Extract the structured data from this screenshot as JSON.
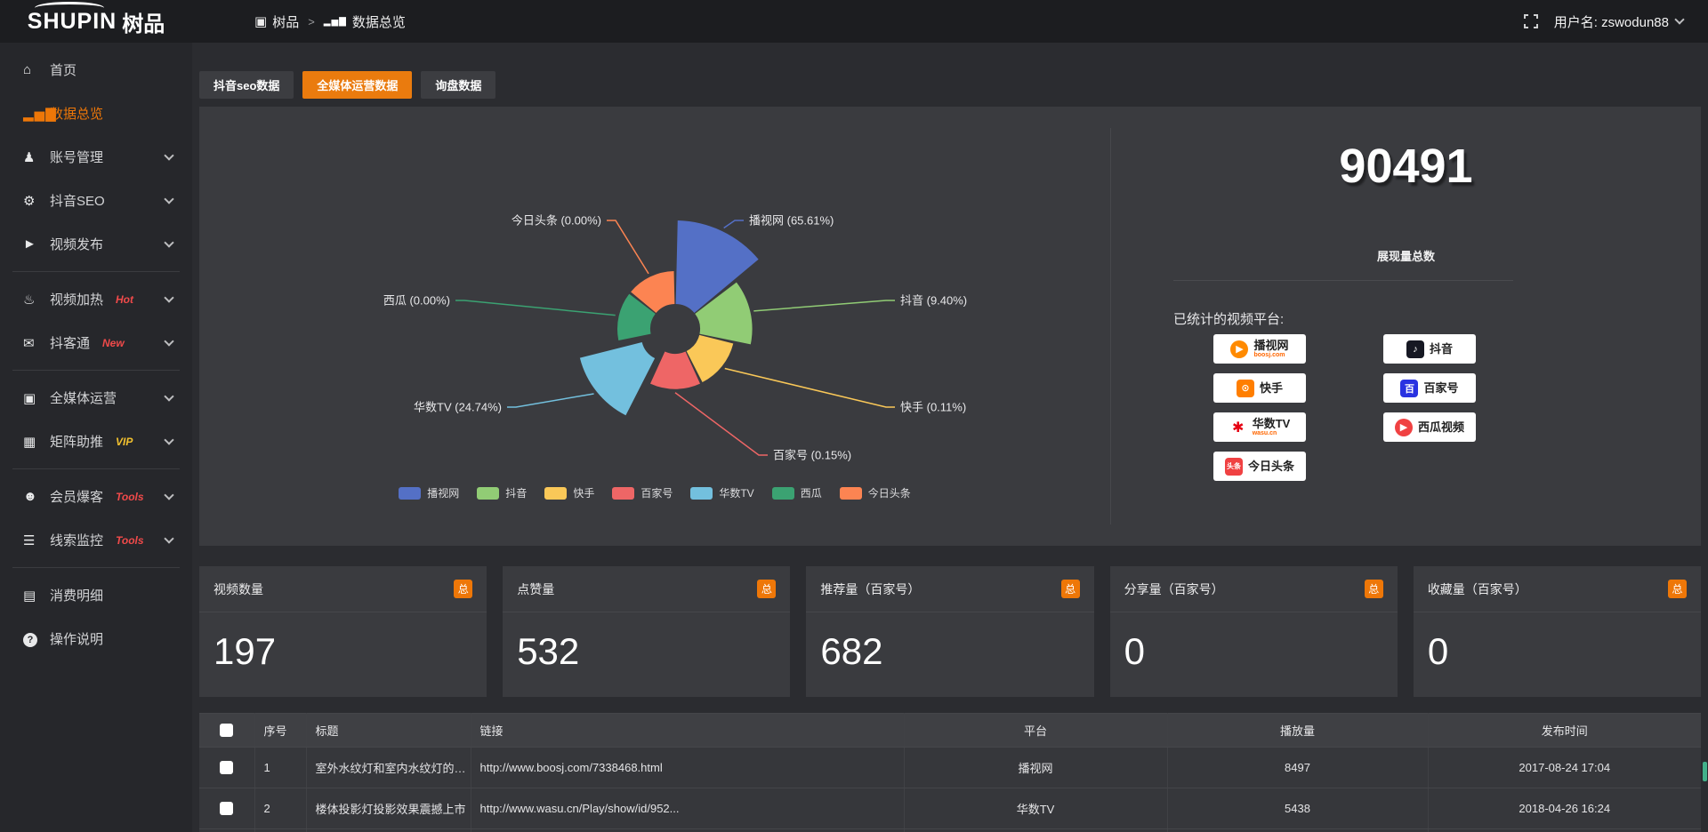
{
  "header": {
    "logo_en": "SHUPIN",
    "logo_cn": "树品",
    "breadcrumb": [
      {
        "icon": "app-icon",
        "label": "树品"
      },
      {
        "icon": "bar-chart-icon",
        "label": "数据总览"
      }
    ],
    "breadcrumb_separator": ">",
    "username": "用户名: zswodun88"
  },
  "sidebar": {
    "items": [
      {
        "label": "首页",
        "icon": "home"
      },
      {
        "label": "数据总览",
        "icon": "bar-chart",
        "active": true
      },
      {
        "label": "账号管理",
        "icon": "user",
        "chevron": true
      },
      {
        "label": "抖音SEO",
        "icon": "gear",
        "chevron": true
      },
      {
        "label": "视频发布",
        "icon": "video-publish",
        "chevron": true
      },
      {
        "divider": true
      },
      {
        "label": "视频加热",
        "icon": "tv-heat",
        "tag": "Hot",
        "tag_style": "red",
        "chevron": true
      },
      {
        "label": "抖客通",
        "icon": "chat",
        "tag": "New",
        "tag_style": "red",
        "chevron": true
      },
      {
        "divider": true
      },
      {
        "label": "全媒体运营",
        "icon": "monitor",
        "chevron": true
      },
      {
        "label": "矩阵助推",
        "icon": "grid",
        "tag": "VIP",
        "tag_style": "gold",
        "chevron": true
      },
      {
        "divider": true
      },
      {
        "label": "会员爆客",
        "icon": "member",
        "tag": "Tools",
        "tag_style": "red",
        "chevron": true
      },
      {
        "label": "线索监控",
        "icon": "sliders",
        "tag": "Tools",
        "tag_style": "red",
        "chevron": true
      },
      {
        "divider": true
      },
      {
        "label": "消费明细",
        "icon": "wallet"
      },
      {
        "label": "操作说明",
        "icon": "question-circle"
      }
    ]
  },
  "tabs": [
    {
      "label": "抖音seo数据",
      "active": false
    },
    {
      "label": "全媒体运营数据",
      "active": true
    },
    {
      "label": "询盘数据",
      "active": false
    }
  ],
  "chart_data": {
    "type": "pie",
    "variant": "rose-equal-angle",
    "legend_position": "bottom",
    "selected_slice": "华数TV",
    "items": [
      {
        "name": "播视网",
        "value": 65.61,
        "label": "播视网 (65.61%)",
        "color": "#5470c6"
      },
      {
        "name": "抖音",
        "value": 9.4,
        "label": "抖音 (9.40%)",
        "color": "#91cc75"
      },
      {
        "name": "快手",
        "value": 0.11,
        "label": "快手 (0.11%)",
        "color": "#fac858"
      },
      {
        "name": "百家号",
        "value": 0.15,
        "label": "百家号 (0.15%)",
        "color": "#ee6666"
      },
      {
        "name": "华数TV",
        "value": 24.74,
        "label": "华数TV (24.74%)",
        "color": "#73c0de"
      },
      {
        "name": "西瓜",
        "value": 0.0,
        "label": "西瓜 (0.00%)",
        "color": "#3ba272"
      },
      {
        "name": "今日头条",
        "value": 0.0,
        "label": "今日头条 (0.00%)",
        "color": "#fc8452"
      }
    ],
    "legend": [
      "播视网",
      "抖音",
      "快手",
      "百家号",
      "华数TV",
      "西瓜",
      "今日头条"
    ]
  },
  "summary": {
    "total": "90491",
    "total_label": "展现量总数",
    "platforms_label": "已统计的视频平台:",
    "platform_columns": [
      [
        {
          "name": "播视网",
          "caption": "boosj.com",
          "brand_color": "#ff8a00",
          "icon_glyph": "▶",
          "icon_shape": "circle"
        },
        {
          "name": "快手",
          "caption": "",
          "brand_color": "#ff7e00",
          "icon_glyph": "⊙",
          "icon_shape": "square"
        },
        {
          "name": "华数TV",
          "caption": "wasu.cn",
          "brand_color": "#e60012",
          "icon_glyph": "✱",
          "icon_shape": "plain"
        },
        {
          "name": "今日头条",
          "caption": "",
          "brand_color": "#f04142",
          "icon_glyph": "头条",
          "icon_shape": "square"
        }
      ],
      [
        {
          "name": "抖音",
          "caption": "",
          "brand_color": "#161823",
          "icon_glyph": "♪",
          "icon_shape": "square"
        },
        {
          "name": "百家号",
          "caption": "",
          "brand_color": "#2932e1",
          "icon_glyph": "百",
          "icon_shape": "square"
        },
        {
          "name": "西瓜视频",
          "caption": "",
          "brand_color": "#f04142",
          "icon_glyph": "▶",
          "icon_shape": "circle"
        }
      ]
    ]
  },
  "stat_cards": [
    {
      "title": "视频数量",
      "badge": "总",
      "value": "197"
    },
    {
      "title": "点赞量",
      "badge": "总",
      "value": "532"
    },
    {
      "title": "推荐量（百家号）",
      "badge": "总",
      "value": "682"
    },
    {
      "title": "分享量（百家号）",
      "badge": "总",
      "value": "0"
    },
    {
      "title": "收藏量（百家号）",
      "badge": "总",
      "value": "0"
    }
  ],
  "table": {
    "headers": [
      "",
      "序号",
      "标题",
      "链接",
      "平台",
      "播放量",
      "发布时间"
    ],
    "rows": [
      {
        "seq": "1",
        "title": "室外水纹灯和室内水纹灯的区别和简介",
        "link": "http://www.boosj.com/7338468.html",
        "platform": "播视网",
        "plays": "8497",
        "time": "2017-08-24 17:04"
      },
      {
        "seq": "2",
        "title": "楼体投影灯投影效果震撼上市",
        "link": "http://www.wasu.cn/Play/show/id/952...",
        "platform": "华数TV",
        "plays": "5438",
        "time": "2018-04-26 16:24"
      }
    ]
  },
  "accent_color": "#ea7b0e"
}
